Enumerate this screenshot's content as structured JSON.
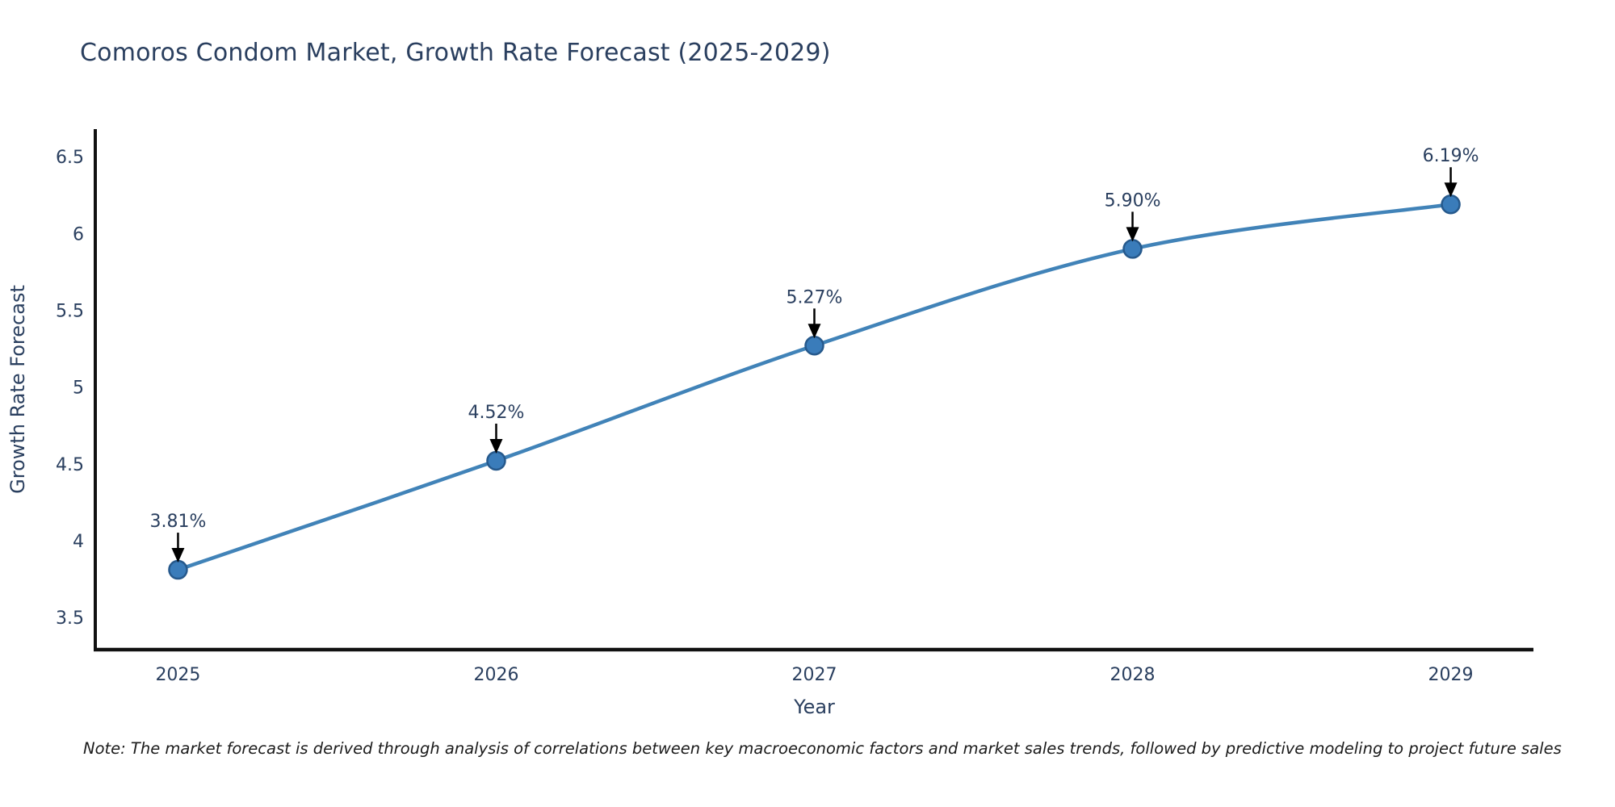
{
  "chart_data": {
    "type": "line",
    "title": "Comoros Condom Market, Growth Rate Forecast (2025-2029)",
    "x": [
      2025,
      2026,
      2027,
      2028,
      2029
    ],
    "series": [
      {
        "name": "Growth Rate Forecast",
        "values": [
          3.81,
          4.52,
          5.27,
          5.9,
          6.19
        ],
        "point_labels": [
          "3.81%",
          "4.52%",
          "5.27%",
          "5.90%",
          "6.19%"
        ]
      }
    ],
    "xlabel": "Year",
    "ylabel": "Growth Rate Forecast",
    "x_ticks": [
      "2025",
      "2026",
      "2027",
      "2028",
      "2029"
    ],
    "y_ticks": [
      3.5,
      4,
      4.5,
      5,
      5.5,
      6,
      6.5
    ],
    "y_tick_labels": [
      "3.5",
      "4",
      "4.5",
      "5",
      "5.5",
      "6",
      "6.5"
    ],
    "xlim": [
      2024.74,
      2029.26
    ],
    "ylim": [
      3.29,
      6.68
    ],
    "grid": false,
    "legend": "none",
    "line_shape": "spline",
    "annotations_have_arrows": true
  },
  "note": "Note: The market forecast is derived through analysis of correlations between key macroeconomic factors and market sales trends, followed by predictive modeling to project future sales",
  "colors": {
    "title_text": "#2a3f5f",
    "tick_text": "#2a3f5f",
    "axis_label_text": "#2a3f5f",
    "line": "#4183b8",
    "marker_fill": "#3a7cba",
    "marker_edge": "#26598c",
    "axis_spine": "#111111",
    "annotation_text": "#2a3f5f",
    "annotation_arrow": "#000000",
    "background": "#ffffff"
  }
}
